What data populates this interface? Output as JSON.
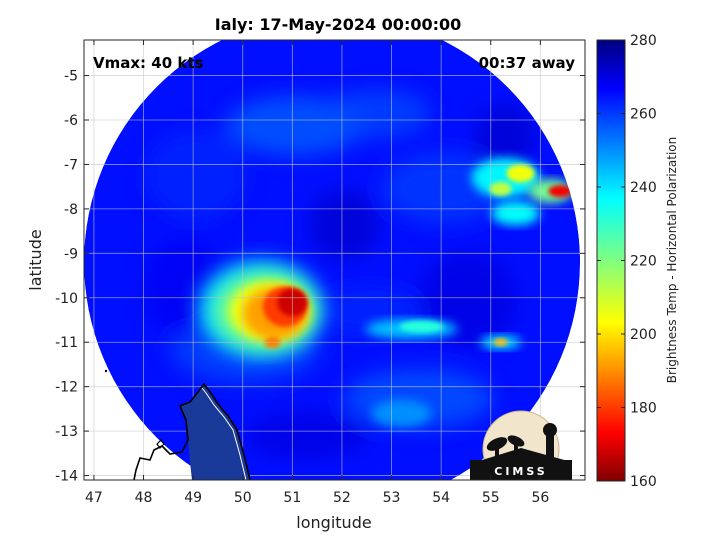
{
  "chart_data": {
    "type": "heatmap",
    "title": "Ialy: 17-May-2024 00:00:00",
    "xlabel": "longitude",
    "ylabel": "latitude",
    "xlim": [
      46.8,
      56.9
    ],
    "ylim": [
      -14.1,
      -4.2
    ],
    "y_direction": "reversed",
    "xticks": [
      47,
      48,
      49,
      50,
      51,
      52,
      53,
      54,
      55,
      56
    ],
    "yticks": [
      -5,
      -6,
      -7,
      -8,
      -9,
      -10,
      -11,
      -12,
      -13,
      -14
    ],
    "grid": true,
    "annotations": {
      "vmax": "Vmax: 40 kts",
      "time_away": "00:37 away"
    },
    "colorbar": {
      "label": "Brightness Temp - Horizontal Polarization",
      "range": [
        160,
        280
      ],
      "ticks": [
        280,
        260,
        240,
        220,
        200,
        180,
        160
      ],
      "colormap": "jet"
    },
    "swath": {
      "center": [
        51.8,
        -9.2
      ],
      "radius_deg": 5.0,
      "background_value": 265
    },
    "features": [
      {
        "label": "convective core",
        "lon": 51.0,
        "lat": -10.1,
        "value": 168
      },
      {
        "label": "outer band",
        "lon": 50.3,
        "lat": -10.4,
        "value": 192
      },
      {
        "label": "north-east band",
        "lon": 55.6,
        "lat": -7.2,
        "value": 205
      },
      {
        "label": "east edge cell",
        "lon": 56.4,
        "lat": -7.6,
        "value": 172
      },
      {
        "label": "south-east band",
        "lon": 53.4,
        "lat": -10.7,
        "value": 232
      },
      {
        "label": "eastern cell",
        "lon": 55.2,
        "lat": -11.0,
        "value": 195
      }
    ],
    "logo_text": "CIMSS"
  }
}
